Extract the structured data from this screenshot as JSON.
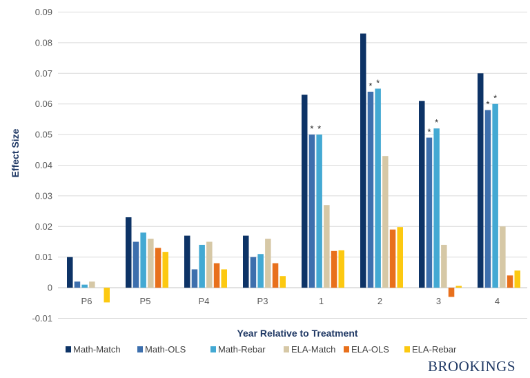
{
  "chart_data": {
    "type": "bar",
    "xlabel": "Year Relative to Treatment",
    "ylabel": "Effect Size",
    "ylim": [
      -0.01,
      0.09
    ],
    "yticks": [
      -0.01,
      0,
      0.01,
      0.02,
      0.03,
      0.04,
      0.05,
      0.06,
      0.07,
      0.08,
      0.09
    ],
    "ytick_labels": [
      "-0.01",
      "0",
      "0.01",
      "0.02",
      "0.03",
      "0.04",
      "0.05",
      "0.06",
      "0.07",
      "0.08",
      "0.09"
    ],
    "categories": [
      "P6",
      "P5",
      "P4",
      "P3",
      "1",
      "2",
      "3",
      "4"
    ],
    "series": [
      {
        "name": "Math-Match",
        "color": "#0d3366",
        "values": [
          0.01,
          0.023,
          0.017,
          0.017,
          0.063,
          0.083,
          0.061,
          0.07
        ]
      },
      {
        "name": "Math-OLS",
        "color": "#3d6fad",
        "values": [
          0.002,
          0.015,
          0.006,
          0.01,
          0.05,
          0.064,
          0.049,
          0.058
        ]
      },
      {
        "name": "Math-Rebar",
        "color": "#43a9d3",
        "values": [
          0.001,
          0.018,
          0.014,
          0.011,
          0.05,
          0.065,
          0.052,
          0.06
        ]
      },
      {
        "name": "ELA-Match",
        "color": "#d6c8a6",
        "values": [
          0.002,
          0.016,
          0.015,
          0.016,
          0.027,
          0.043,
          0.014,
          0.02
        ]
      },
      {
        "name": "ELA-OLS",
        "color": "#e8701c",
        "values": [
          0.0,
          0.013,
          0.008,
          0.008,
          0.012,
          0.019,
          -0.003,
          0.004
        ]
      },
      {
        "name": "ELA-Rebar",
        "color": "#fcc911",
        "values": [
          -0.0048,
          0.0117,
          0.006,
          0.0038,
          0.0122,
          0.0198,
          0.0006,
          0.0056
        ]
      }
    ],
    "significance_marker": "*",
    "significant": [
      {
        "category": "1",
        "series": "Math-OLS"
      },
      {
        "category": "1",
        "series": "Math-Rebar"
      },
      {
        "category": "2",
        "series": "Math-OLS"
      },
      {
        "category": "2",
        "series": "Math-Rebar"
      },
      {
        "category": "3",
        "series": "Math-OLS"
      },
      {
        "category": "3",
        "series": "Math-Rebar"
      },
      {
        "category": "4",
        "series": "Math-OLS"
      },
      {
        "category": "4",
        "series": "Math-Rebar"
      }
    ],
    "gridlines": true,
    "legend_position": "bottom"
  },
  "brand": "BROOKINGS"
}
